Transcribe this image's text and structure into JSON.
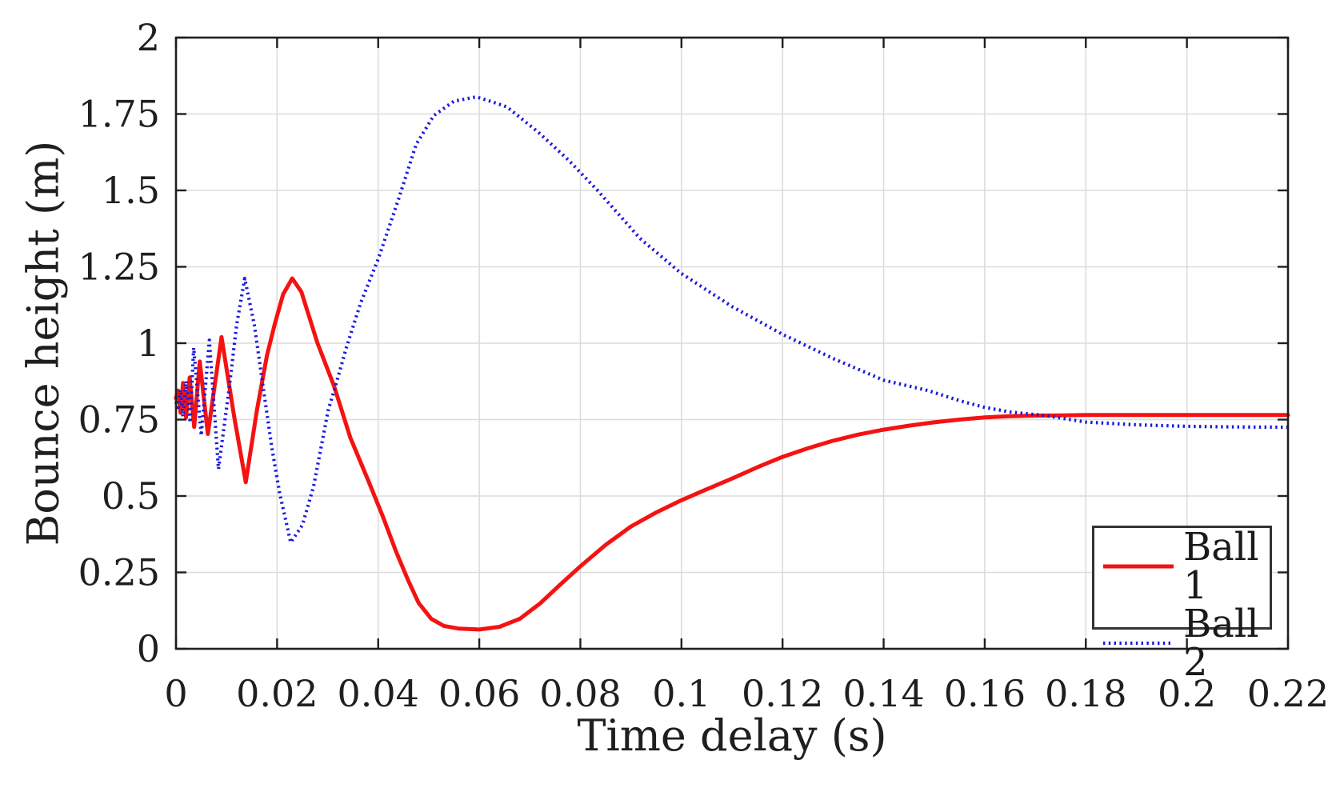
{
  "chart_data": {
    "type": "line",
    "title": "",
    "xlabel": "Time delay (s)",
    "ylabel": "Bounce height (m)",
    "xlim": [
      0,
      0.22
    ],
    "ylim": [
      0,
      2
    ],
    "xticks": [
      0,
      0.02,
      0.04,
      0.06,
      0.08,
      0.1,
      0.12,
      0.14,
      0.16,
      0.18,
      0.2,
      0.22
    ],
    "xtick_labels": [
      "0",
      "0.02",
      "0.04",
      "0.06",
      "0.08",
      "0.1",
      "0.12",
      "0.14",
      "0.16",
      "0.18",
      "0.2",
      "0.22"
    ],
    "yticks": [
      0,
      0.25,
      0.5,
      0.75,
      1,
      1.25,
      1.5,
      1.75,
      2
    ],
    "ytick_labels": [
      "0",
      "0.25",
      "0.5",
      "0.75",
      "1",
      "1.25",
      "1.5",
      "1.75",
      "2"
    ],
    "grid": true,
    "grid_color": "#dcdcdc",
    "axis_color": "#1f1f1f",
    "legend": {
      "position": "bottom-right",
      "border_color": "#333333"
    },
    "series": [
      {
        "name": "Ball 1",
        "color": "#f41212",
        "style": "solid",
        "points": [
          [
            0.0,
            0.82
          ],
          [
            0.0004,
            0.845
          ],
          [
            0.0009,
            0.772
          ],
          [
            0.0014,
            0.87
          ],
          [
            0.002,
            0.757
          ],
          [
            0.0027,
            0.888
          ],
          [
            0.0036,
            0.726
          ],
          [
            0.0047,
            0.94
          ],
          [
            0.0063,
            0.703
          ],
          [
            0.009,
            1.02
          ],
          [
            0.0115,
            0.76
          ],
          [
            0.0138,
            0.545
          ],
          [
            0.016,
            0.78
          ],
          [
            0.018,
            0.96
          ],
          [
            0.0195,
            1.06
          ],
          [
            0.0212,
            1.16
          ],
          [
            0.023,
            1.212
          ],
          [
            0.0248,
            1.168
          ],
          [
            0.028,
            1.0
          ],
          [
            0.0313,
            0.858
          ],
          [
            0.0345,
            0.69
          ],
          [
            0.038,
            0.552
          ],
          [
            0.041,
            0.43
          ],
          [
            0.0435,
            0.32
          ],
          [
            0.0459,
            0.225
          ],
          [
            0.048,
            0.15
          ],
          [
            0.0505,
            0.098
          ],
          [
            0.053,
            0.075
          ],
          [
            0.056,
            0.066
          ],
          [
            0.06,
            0.063
          ],
          [
            0.064,
            0.072
          ],
          [
            0.068,
            0.098
          ],
          [
            0.072,
            0.148
          ],
          [
            0.076,
            0.21
          ],
          [
            0.08,
            0.27
          ],
          [
            0.085,
            0.34
          ],
          [
            0.09,
            0.4
          ],
          [
            0.095,
            0.446
          ],
          [
            0.1,
            0.486
          ],
          [
            0.105,
            0.522
          ],
          [
            0.11,
            0.557
          ],
          [
            0.115,
            0.594
          ],
          [
            0.12,
            0.628
          ],
          [
            0.125,
            0.656
          ],
          [
            0.13,
            0.681
          ],
          [
            0.135,
            0.701
          ],
          [
            0.14,
            0.717
          ],
          [
            0.145,
            0.73
          ],
          [
            0.15,
            0.741
          ],
          [
            0.155,
            0.75
          ],
          [
            0.16,
            0.757
          ],
          [
            0.165,
            0.761
          ],
          [
            0.17,
            0.763
          ],
          [
            0.175,
            0.764
          ],
          [
            0.18,
            0.765
          ],
          [
            0.19,
            0.765
          ],
          [
            0.2,
            0.765
          ],
          [
            0.21,
            0.765
          ],
          [
            0.22,
            0.765
          ]
        ]
      },
      {
        "name": "Ball 2",
        "color": "#1a1ae0",
        "style": "dotted",
        "points": [
          [
            0.0,
            0.808
          ],
          [
            0.0004,
            0.78
          ],
          [
            0.0009,
            0.848
          ],
          [
            0.0014,
            0.76
          ],
          [
            0.002,
            0.876
          ],
          [
            0.0028,
            0.74
          ],
          [
            0.0035,
            0.985
          ],
          [
            0.005,
            0.698
          ],
          [
            0.0066,
            1.01
          ],
          [
            0.0084,
            0.588
          ],
          [
            0.0105,
            0.85
          ],
          [
            0.012,
            1.06
          ],
          [
            0.0136,
            1.212
          ],
          [
            0.0155,
            1.06
          ],
          [
            0.0172,
            0.86
          ],
          [
            0.019,
            0.655
          ],
          [
            0.0205,
            0.51
          ],
          [
            0.0227,
            0.348
          ],
          [
            0.025,
            0.405
          ],
          [
            0.0272,
            0.53
          ],
          [
            0.0301,
            0.78
          ],
          [
            0.0313,
            0.846
          ],
          [
            0.0337,
            0.985
          ],
          [
            0.0365,
            1.13
          ],
          [
            0.04,
            1.275
          ],
          [
            0.044,
            1.47
          ],
          [
            0.0475,
            1.65
          ],
          [
            0.051,
            1.745
          ],
          [
            0.055,
            1.792
          ],
          [
            0.0594,
            1.806
          ],
          [
            0.0625,
            1.79
          ],
          [
            0.0655,
            1.773
          ],
          [
            0.0717,
            1.69
          ],
          [
            0.0776,
            1.6
          ],
          [
            0.0834,
            1.5
          ],
          [
            0.0918,
            1.343
          ],
          [
            0.1,
            1.228
          ],
          [
            0.11,
            1.12
          ],
          [
            0.12,
            1.029
          ],
          [
            0.13,
            0.95
          ],
          [
            0.14,
            0.879
          ],
          [
            0.1488,
            0.845
          ],
          [
            0.155,
            0.812
          ],
          [
            0.16,
            0.79
          ],
          [
            0.165,
            0.775
          ],
          [
            0.172,
            0.763
          ],
          [
            0.18,
            0.742
          ],
          [
            0.19,
            0.733
          ],
          [
            0.2,
            0.728
          ],
          [
            0.21,
            0.726
          ],
          [
            0.22,
            0.725
          ]
        ]
      }
    ]
  }
}
